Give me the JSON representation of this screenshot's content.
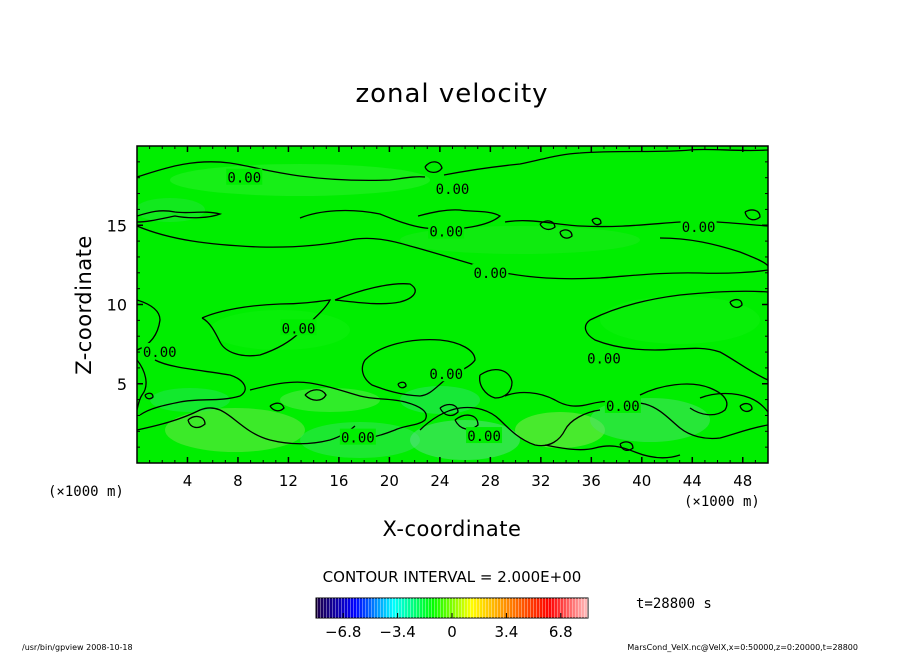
{
  "chart_data": {
    "type": "contour",
    "title": "zonal velocity",
    "xlabel": "X-coordinate",
    "ylabel": "Z-coordinate",
    "x_unit": "(×1000 m)",
    "y_unit": "(×1000 m)",
    "xlim": [
      0,
      50
    ],
    "ylim": [
      0,
      20
    ],
    "x_ticks": [
      4,
      8,
      12,
      16,
      20,
      24,
      28,
      32,
      36,
      40,
      44,
      48
    ],
    "y_ticks": [
      5,
      10,
      15
    ],
    "contour_interval_text": "CONTOUR INTERVAL = 2.000E+00",
    "contour_labels": [
      {
        "text": "0.00",
        "x": 8.5,
        "z": 18.0
      },
      {
        "text": "0.00",
        "x": 25.0,
        "z": 17.3
      },
      {
        "text": "0.00",
        "x": 24.5,
        "z": 14.6
      },
      {
        "text": "0.00",
        "x": 44.5,
        "z": 14.9
      },
      {
        "text": "0.00",
        "x": 28.0,
        "z": 12.0
      },
      {
        "text": "0.00",
        "x": 12.8,
        "z": 8.5
      },
      {
        "text": "0.00",
        "x": 1.8,
        "z": 7.0
      },
      {
        "text": "0.00",
        "x": 37.0,
        "z": 6.6
      },
      {
        "text": "0.00",
        "x": 24.5,
        "z": 5.6
      },
      {
        "text": "0.00",
        "x": 38.5,
        "z": 3.6
      },
      {
        "text": "0.00",
        "x": 17.5,
        "z": 1.6
      },
      {
        "text": "0.00",
        "x": 27.5,
        "z": 1.7
      }
    ],
    "colorbar": {
      "min": -8.5,
      "max": 8.5,
      "tick_values": [
        -6.8,
        -3.4,
        0,
        3.4,
        6.8
      ],
      "tick_labels": [
        "−6.8",
        "−3.4",
        "0",
        "3.4",
        "6.8"
      ],
      "colors": [
        "#1e0046",
        "#0000ff",
        "#00ffff",
        "#00ff00",
        "#ffff00",
        "#ff8000",
        "#ff0000",
        "#ffc0c0"
      ]
    },
    "time_label": "t=28800 s"
  },
  "footer": {
    "left": "/usr/bin/gpview  2008-10-18",
    "right": "MarsCond_VelX.nc@VelX,x=0:50000,z=0:20000,t=28800"
  }
}
